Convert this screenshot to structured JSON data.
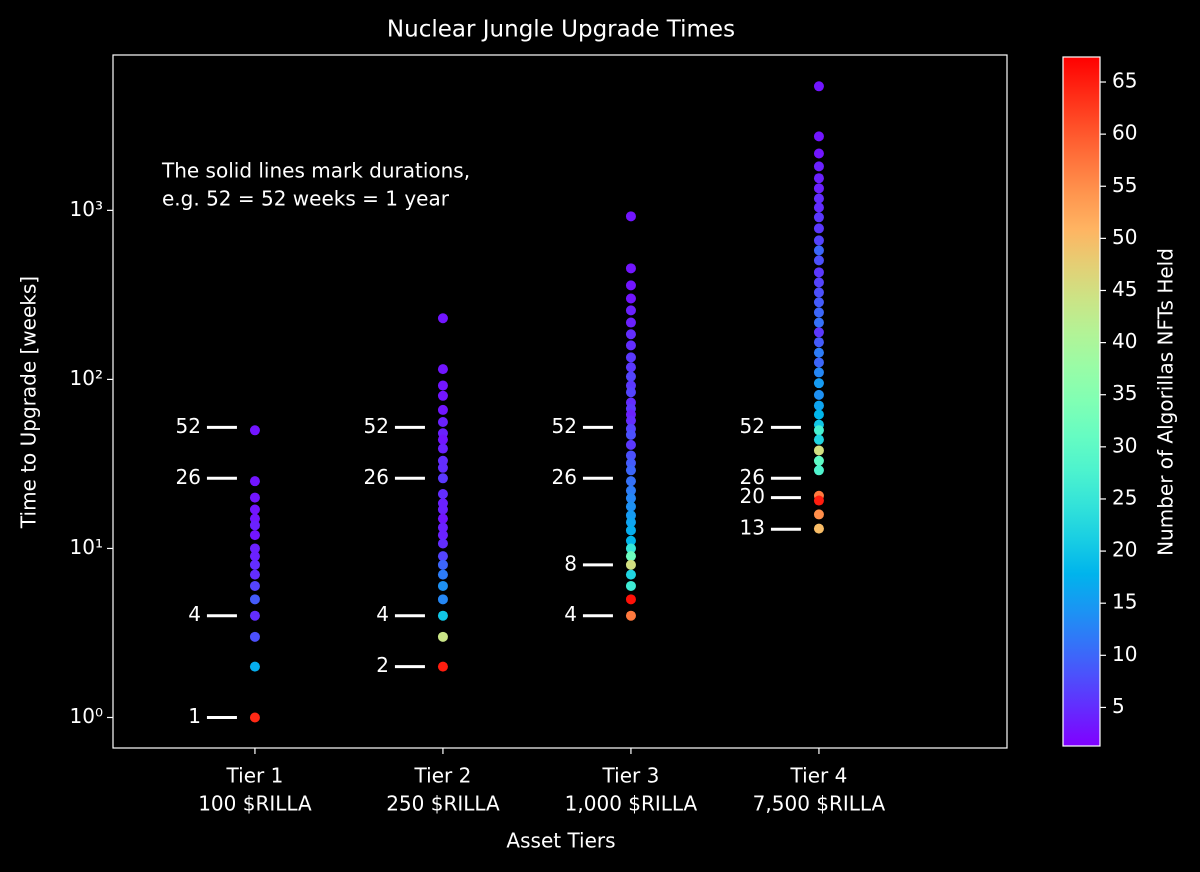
{
  "chart_data": {
    "type": "scatter",
    "title": "Nuclear Jungle Upgrade Times",
    "x_label": "Asset Tiers",
    "y_label": "Time to Upgrade [weeks]",
    "log_y": true,
    "categories": [
      "Tier 1",
      "Tier 2",
      "Tier 3",
      "Tier 4"
    ],
    "category_sublabels": [
      "100 $RILLA",
      "250 $RILLA",
      "1,000 $RILLA",
      "7,500 $RILLA"
    ],
    "ylim": [
      0.66,
      8300
    ],
    "yticks": [
      {
        "value": 1,
        "label": "10⁰"
      },
      {
        "value": 10,
        "label": "10¹"
      },
      {
        "value": 100,
        "label": "10²"
      },
      {
        "value": 1000,
        "label": "10³"
      }
    ],
    "annotation": [
      "The solid lines mark durations,",
      "e.g. 52 = 52 weeks = 1 year"
    ],
    "duration_marks": [
      [
        52,
        26,
        4,
        1
      ],
      [
        52,
        26,
        4,
        2
      ],
      [
        52,
        26,
        8,
        4
      ],
      [
        52,
        26,
        20,
        13
      ]
    ],
    "colormap": "rainbow",
    "colorbar_label": "Number of Algorillas NFTs Held",
    "clim": [
      1.3,
      67.4
    ],
    "cticks": [
      5,
      10,
      15,
      20,
      25,
      30,
      35,
      40,
      45,
      50,
      55,
      60,
      65
    ],
    "series": [
      {
        "values": [
          50,
          25,
          20,
          17,
          15,
          13.7,
          12,
          10,
          9,
          8,
          7,
          6,
          5,
          4,
          3,
          2,
          1
        ],
        "c": [
          3,
          3,
          3,
          3,
          3,
          4,
          3,
          4,
          4,
          5,
          5,
          7,
          9,
          5,
          8,
          17,
          64
        ]
      },
      {
        "values": [
          230,
          115,
          92,
          80,
          66,
          56,
          48,
          44,
          39,
          33,
          30,
          26,
          21,
          18.5,
          17,
          15,
          13.3,
          12,
          10.7,
          9,
          8,
          7,
          6,
          5,
          4,
          3,
          2
        ],
        "c": [
          3,
          3,
          3,
          3,
          3,
          4,
          4,
          3,
          4,
          5,
          5,
          6,
          5,
          4,
          4,
          3,
          4,
          4,
          5,
          7,
          10,
          12,
          14,
          13,
          20,
          44,
          65
        ]
      },
      {
        "values": [
          922,
          454,
          360,
          301,
          256,
          217,
          185,
          159,
          135,
          118,
          104,
          92,
          84,
          73,
          67,
          62,
          57,
          51,
          47,
          41,
          35.5,
          32,
          29,
          25,
          22,
          19.8,
          17.7,
          15.7,
          14.3,
          12.8,
          11.1,
          10,
          9,
          8,
          7,
          6,
          5,
          4
        ],
        "c": [
          3,
          3,
          3,
          3,
          4,
          4,
          5,
          5,
          6,
          6,
          7,
          6,
          7,
          5,
          6,
          4,
          5,
          7,
          8,
          6,
          8,
          9,
          10,
          11,
          12,
          13,
          14,
          15,
          16,
          17,
          18,
          25,
          32,
          45,
          22,
          26,
          66,
          57
        ]
      },
      {
        "values": [
          5420,
          2740,
          2170,
          1820,
          1550,
          1350,
          1175,
          1040,
          910,
          782,
          664,
          580,
          506,
          430,
          375,
          327,
          286,
          249,
          217,
          190,
          166,
          144,
          126,
          110,
          95,
          81,
          70,
          62,
          54,
          50,
          44,
          38,
          33,
          29,
          20.5,
          19.2,
          15.9,
          13.1
        ],
        "c": [
          3,
          3,
          3,
          4,
          4,
          4,
          5,
          5,
          6,
          6,
          7,
          10,
          8,
          6,
          7,
          8,
          9,
          10,
          11,
          6,
          9,
          12,
          10,
          13,
          15,
          14,
          16,
          18,
          20,
          27,
          22,
          45,
          30,
          28,
          57,
          65,
          55,
          50
        ]
      }
    ]
  }
}
